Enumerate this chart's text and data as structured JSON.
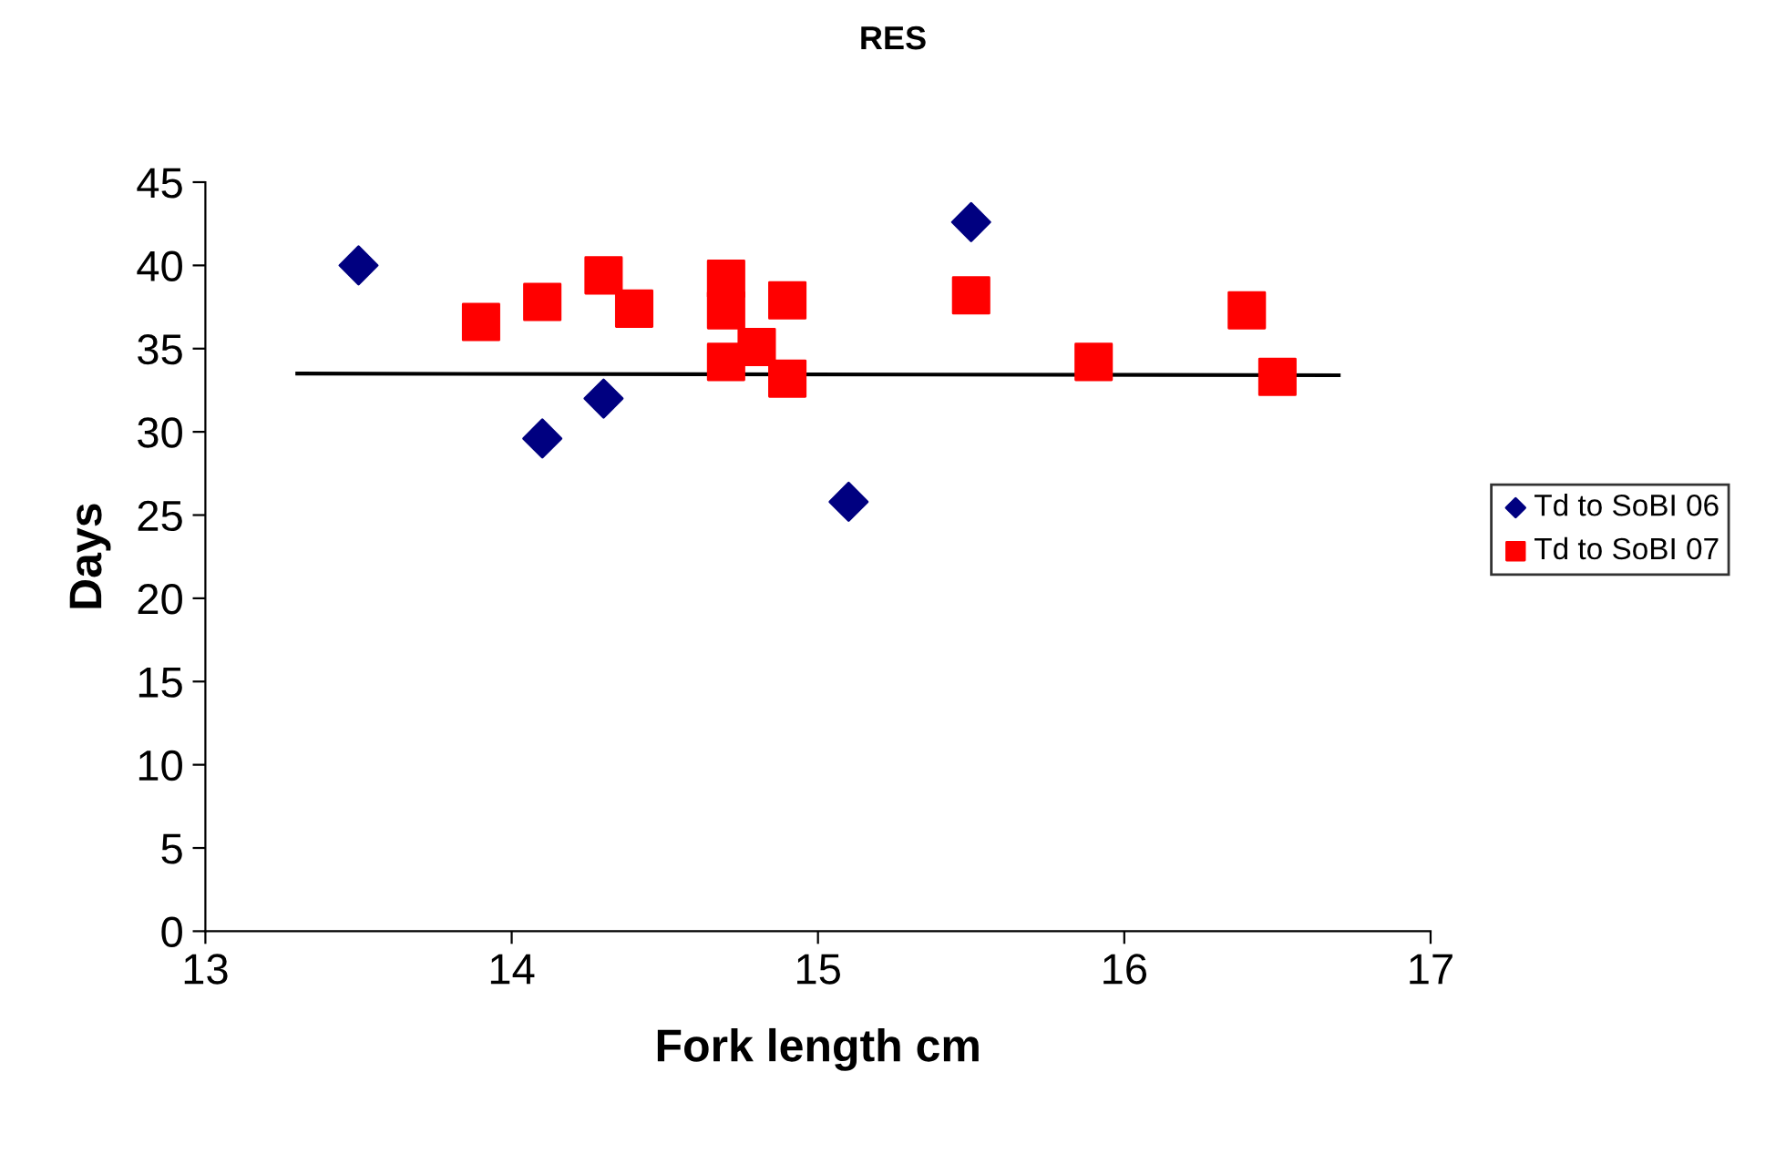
{
  "chart_data": {
    "type": "scatter",
    "title": "RES",
    "xlabel": "Fork length cm",
    "ylabel": "Days",
    "xlim": [
      13,
      17
    ],
    "xticks": [
      13,
      14,
      15,
      16,
      17
    ],
    "ylim": [
      0,
      45
    ],
    "yticks": [
      0,
      5,
      10,
      15,
      20,
      25,
      30,
      35,
      40,
      45
    ],
    "grid": false,
    "legend": "right",
    "series": [
      {
        "name": "Td to SoBI 06",
        "color": "#000080",
        "marker": "diamond",
        "x": [
          13.5,
          14.1,
          14.3,
          15.1,
          15.5
        ],
        "values": [
          40,
          29.6,
          32,
          25.8,
          42.6
        ]
      },
      {
        "name": "Td to SoBI 07",
        "color": "#ff0000",
        "marker": "square",
        "x": [
          13.9,
          14.1,
          14.3,
          14.4,
          14.7,
          14.7,
          14.7,
          14.8,
          14.9,
          14.9,
          15.5,
          15.9,
          16.4,
          16.5
        ],
        "values": [
          36.6,
          37.8,
          39.4,
          37.4,
          39.2,
          37.3,
          34.2,
          35.1,
          37.9,
          33.2,
          38.2,
          34.2,
          37.3,
          33.3
        ]
      },
      {
        "type": "line",
        "color": "#000000",
        "line_style": "solid",
        "x": [
          13.3,
          16.7
        ],
        "values": [
          33.5,
          33.4
        ]
      }
    ]
  }
}
